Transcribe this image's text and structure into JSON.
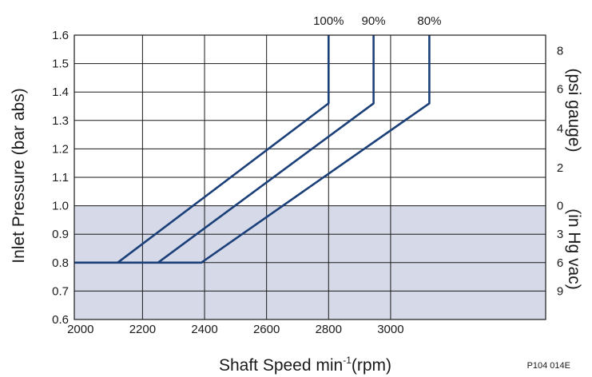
{
  "chart_data": {
    "type": "line",
    "title": "",
    "xlabel_main": "Shaft Speed min",
    "xlabel_sup": "-1",
    "xlabel_unit": "(rpm)",
    "ylabel": "Inlet Pressure (bar abs)",
    "y2label_upper": "(psi gauge)",
    "y2label_lower": "(in Hg vac)",
    "reference": "P104 014E",
    "xlim": [
      1980,
      3500
    ],
    "ylim": [
      0.6,
      1.6
    ],
    "grid": true,
    "xticks": [
      2000,
      2200,
      2400,
      2600,
      2800,
      3000
    ],
    "xtick_labels": [
      "2000",
      "2200",
      "2400",
      "2600",
      "2800",
      "3000"
    ],
    "yticks": [
      0.6,
      0.7,
      0.8,
      0.9,
      1.0,
      1.1,
      1.2,
      1.3,
      1.4,
      1.5,
      1.6
    ],
    "ytick_labels": [
      "0.6",
      "0.7",
      "0.8",
      "0.9",
      "1.0",
      "1.1",
      "1.2",
      "1.3",
      "1.4",
      "1.5",
      "1.6"
    ],
    "y2_ticks_psi": [
      {
        "label": "8",
        "bar": 1.545
      },
      {
        "label": "6",
        "bar": 1.41
      },
      {
        "label": "4",
        "bar": 1.272
      },
      {
        "label": "2",
        "bar": 1.134
      }
    ],
    "y2_ticks_inhg": [
      {
        "label": "0",
        "bar": 1.0
      },
      {
        "label": "3",
        "bar": 0.9
      },
      {
        "label": "6",
        "bar": 0.8
      },
      {
        "label": "9",
        "bar": 0.7
      }
    ],
    "shaded_region": {
      "y_from": 0.6,
      "y_to": 1.0,
      "color": "#d5d9e8"
    },
    "line_color": "#1b3f78",
    "series": [
      {
        "name": "100%",
        "points": [
          [
            1980,
            0.8
          ],
          [
            2120,
            0.8
          ],
          [
            2800,
            1.36
          ],
          [
            2800,
            1.6
          ]
        ]
      },
      {
        "name": "90%",
        "points": [
          [
            2250,
            0.8
          ],
          [
            2945,
            1.36
          ],
          [
            2945,
            1.6
          ]
        ]
      },
      {
        "name": "80%",
        "points": [
          [
            2120,
            0.8
          ],
          [
            2390,
            0.8
          ],
          [
            3125,
            1.36
          ],
          [
            3125,
            1.6
          ]
        ]
      }
    ]
  }
}
